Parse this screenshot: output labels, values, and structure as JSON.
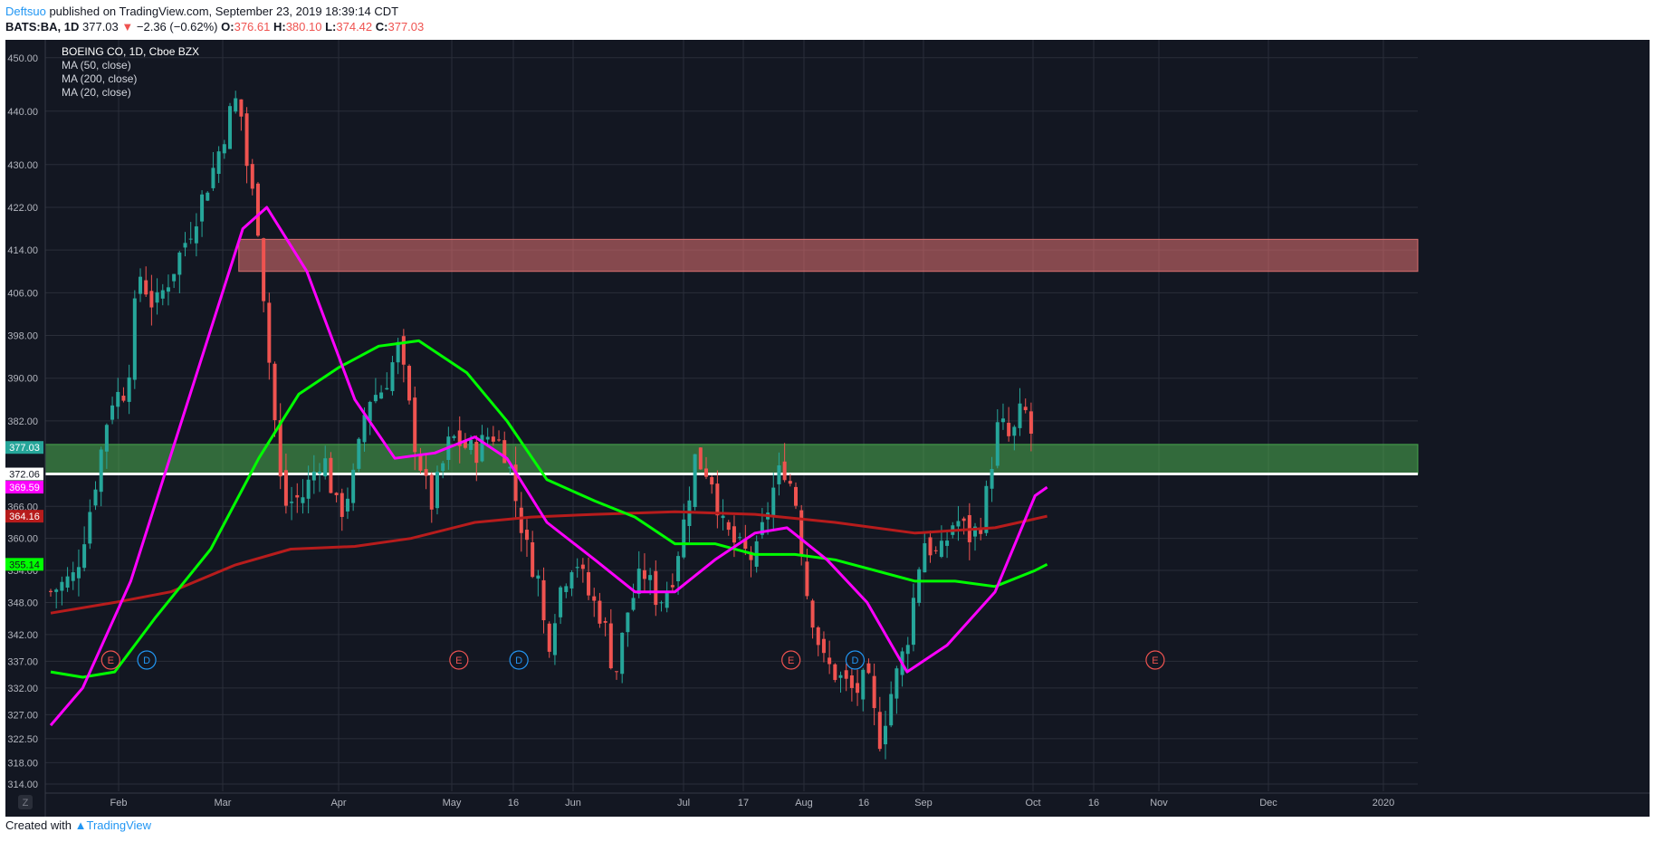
{
  "header": {
    "author": "Deftsuo",
    "published": "published on TradingView.com, September 23, 2019 18:39:14 CDT",
    "symbol": "BATS:BA, 1D",
    "last": "377.03",
    "change_arrow": "▼",
    "change": "−2.36 (−0.62%)",
    "o_label": "O:",
    "o": "376.61",
    "h_label": "H:",
    "h": "380.10",
    "l_label": "L:",
    "l": "374.42",
    "c_label": "C:",
    "c": "377.03"
  },
  "footer": {
    "created_with": "Created with",
    "brand": "TradingView"
  },
  "colors": {
    "background": "#131722",
    "up": "#26a69a",
    "down": "#ef5350",
    "ma50": "#00ff00",
    "ma200": "#b71c1c",
    "ma20": "#ff00ff",
    "resistance_zone": "#e57373",
    "support_zone": "#4caf50"
  },
  "chart_data": {
    "type": "candlestick",
    "title": "BOEING CO, 1D, Cboe BZX",
    "legend": [
      "MA (50, close)",
      "MA (200, close)",
      "MA (20, close)"
    ],
    "legend_placement": "top-left",
    "grid": true,
    "ylim": [
      314,
      452
    ],
    "y_ticks": [
      {
        "v": 450,
        "label": "450.00"
      },
      {
        "v": 440,
        "label": "440.00"
      },
      {
        "v": 430,
        "label": "430.00"
      },
      {
        "v": 422,
        "label": "422.00"
      },
      {
        "v": 414,
        "label": "414.00"
      },
      {
        "v": 406,
        "label": "406.00"
      },
      {
        "v": 398,
        "label": "398.00"
      },
      {
        "v": 390,
        "label": "390.00"
      },
      {
        "v": 382,
        "label": "382.00"
      },
      {
        "v": 366,
        "label": "366.00"
      },
      {
        "v": 360,
        "label": "360.00"
      },
      {
        "v": 354,
        "label": "354.00"
      },
      {
        "v": 348,
        "label": "348.00"
      },
      {
        "v": 342,
        "label": "342.00"
      },
      {
        "v": 337,
        "label": "337.00"
      },
      {
        "v": 332,
        "label": "332.00"
      },
      {
        "v": 327,
        "label": "327.00"
      },
      {
        "v": 322.5,
        "label": "322.50"
      },
      {
        "v": 318,
        "label": "318.00"
      },
      {
        "v": 314,
        "label": "314.00"
      }
    ],
    "x_ticks": [
      "Feb",
      "Mar",
      "Apr",
      "May",
      "16",
      "Jun",
      "Jul",
      "17",
      "Aug",
      "16",
      "Sep",
      "Oct",
      "16",
      "Nov",
      "Dec",
      "2020"
    ],
    "price_labels": [
      {
        "v": 377.03,
        "label": "377.03",
        "color": "#26a69a"
      },
      {
        "v": 372.06,
        "label": "372.06",
        "color": "#ffffff"
      },
      {
        "v": 369.59,
        "label": "369.59",
        "color": "#ff00ff"
      },
      {
        "v": 364.16,
        "label": "364.16",
        "color": "#b71c1c"
      },
      {
        "v": 355.14,
        "label": "355.14",
        "color": "#00ff00"
      }
    ],
    "zones": [
      {
        "name": "resistance",
        "low": 410,
        "high": 416,
        "start_day": 47
      },
      {
        "name": "support",
        "low": 372,
        "high": 377.6,
        "start_day": 0
      }
    ],
    "support_line": 372.06,
    "events": [
      {
        "day": 15,
        "label": "E"
      },
      {
        "day": 24,
        "label": "D"
      },
      {
        "day": 102,
        "label": "E"
      },
      {
        "day": 117,
        "label": "D"
      },
      {
        "day": 185,
        "label": "E"
      },
      {
        "day": 201,
        "label": "D"
      },
      {
        "day": 276,
        "label": "E"
      }
    ],
    "anchors": [
      {
        "day": 0,
        "price": 350
      },
      {
        "day": 6,
        "price": 353
      },
      {
        "day": 10,
        "price": 366
      },
      {
        "day": 15,
        "price": 386
      },
      {
        "day": 19,
        "price": 388
      },
      {
        "day": 22,
        "price": 410
      },
      {
        "day": 26,
        "price": 403
      },
      {
        "day": 31,
        "price": 411
      },
      {
        "day": 35,
        "price": 418
      },
      {
        "day": 41,
        "price": 430
      },
      {
        "day": 45,
        "price": 440
      },
      {
        "day": 47,
        "price": 443
      },
      {
        "day": 49,
        "price": 430
      },
      {
        "day": 52,
        "price": 418
      },
      {
        "day": 54,
        "price": 398
      },
      {
        "day": 58,
        "price": 366
      },
      {
        "day": 63,
        "price": 368
      },
      {
        "day": 68,
        "price": 376
      },
      {
        "day": 72,
        "price": 364
      },
      {
        "day": 76,
        "price": 372
      },
      {
        "day": 79,
        "price": 386
      },
      {
        "day": 83,
        "price": 388
      },
      {
        "day": 87,
        "price": 396
      },
      {
        "day": 91,
        "price": 378
      },
      {
        "day": 95,
        "price": 366
      },
      {
        "day": 100,
        "price": 379
      },
      {
        "day": 106,
        "price": 376
      },
      {
        "day": 110,
        "price": 380
      },
      {
        "day": 114,
        "price": 376
      },
      {
        "day": 116,
        "price": 368
      },
      {
        "day": 119,
        "price": 358
      },
      {
        "day": 122,
        "price": 352
      },
      {
        "day": 124,
        "price": 339
      },
      {
        "day": 127,
        "price": 350
      },
      {
        "day": 131,
        "price": 357
      },
      {
        "day": 134,
        "price": 350
      },
      {
        "day": 138,
        "price": 345
      },
      {
        "day": 141,
        "price": 334
      },
      {
        "day": 144,
        "price": 346
      },
      {
        "day": 148,
        "price": 354
      },
      {
        "day": 152,
        "price": 348
      },
      {
        "day": 155,
        "price": 352
      },
      {
        "day": 158,
        "price": 362
      },
      {
        "day": 161,
        "price": 375
      },
      {
        "day": 165,
        "price": 372
      },
      {
        "day": 168,
        "price": 362
      },
      {
        "day": 172,
        "price": 358
      },
      {
        "day": 176,
        "price": 356
      },
      {
        "day": 180,
        "price": 368
      },
      {
        "day": 183,
        "price": 374
      },
      {
        "day": 186,
        "price": 368
      },
      {
        "day": 189,
        "price": 350
      },
      {
        "day": 193,
        "price": 337
      },
      {
        "day": 197,
        "price": 334
      },
      {
        "day": 201,
        "price": 331
      },
      {
        "day": 204,
        "price": 334
      },
      {
        "day": 207,
        "price": 322
      },
      {
        "day": 210,
        "price": 331
      },
      {
        "day": 214,
        "price": 341
      },
      {
        "day": 218,
        "price": 360
      },
      {
        "day": 222,
        "price": 356
      },
      {
        "day": 226,
        "price": 364
      },
      {
        "day": 230,
        "price": 360
      },
      {
        "day": 233,
        "price": 364
      },
      {
        "day": 235,
        "price": 374
      },
      {
        "day": 237,
        "price": 382
      },
      {
        "day": 240,
        "price": 378
      },
      {
        "day": 243,
        "price": 385
      },
      {
        "day": 246,
        "price": 377
      }
    ],
    "ma20": [
      {
        "day": 0,
        "price": 325
      },
      {
        "day": 8,
        "price": 332
      },
      {
        "day": 20,
        "price": 352
      },
      {
        "day": 34,
        "price": 385
      },
      {
        "day": 48,
        "price": 418
      },
      {
        "day": 54,
        "price": 422
      },
      {
        "day": 64,
        "price": 410
      },
      {
        "day": 76,
        "price": 386
      },
      {
        "day": 86,
        "price": 375
      },
      {
        "day": 96,
        "price": 376
      },
      {
        "day": 106,
        "price": 379
      },
      {
        "day": 114,
        "price": 375
      },
      {
        "day": 124,
        "price": 363
      },
      {
        "day": 136,
        "price": 356
      },
      {
        "day": 146,
        "price": 350
      },
      {
        "day": 156,
        "price": 350
      },
      {
        "day": 166,
        "price": 356
      },
      {
        "day": 176,
        "price": 361
      },
      {
        "day": 184,
        "price": 362
      },
      {
        "day": 194,
        "price": 356
      },
      {
        "day": 204,
        "price": 348
      },
      {
        "day": 214,
        "price": 335
      },
      {
        "day": 224,
        "price": 340
      },
      {
        "day": 236,
        "price": 350
      },
      {
        "day": 246,
        "price": 368
      },
      {
        "day": 249,
        "price": 369.59
      }
    ],
    "ma50": [
      {
        "day": 0,
        "price": 335
      },
      {
        "day": 8,
        "price": 334
      },
      {
        "day": 16,
        "price": 335
      },
      {
        "day": 26,
        "price": 345
      },
      {
        "day": 40,
        "price": 358
      },
      {
        "day": 52,
        "price": 375
      },
      {
        "day": 62,
        "price": 387
      },
      {
        "day": 72,
        "price": 392
      },
      {
        "day": 82,
        "price": 396
      },
      {
        "day": 92,
        "price": 397
      },
      {
        "day": 104,
        "price": 391
      },
      {
        "day": 114,
        "price": 382
      },
      {
        "day": 124,
        "price": 371
      },
      {
        "day": 136,
        "price": 367
      },
      {
        "day": 146,
        "price": 364
      },
      {
        "day": 156,
        "price": 359
      },
      {
        "day": 166,
        "price": 359
      },
      {
        "day": 176,
        "price": 357
      },
      {
        "day": 186,
        "price": 357
      },
      {
        "day": 196,
        "price": 356
      },
      {
        "day": 206,
        "price": 354
      },
      {
        "day": 216,
        "price": 352
      },
      {
        "day": 226,
        "price": 352
      },
      {
        "day": 236,
        "price": 351
      },
      {
        "day": 246,
        "price": 354
      },
      {
        "day": 249,
        "price": 355.14
      }
    ],
    "ma200": [
      {
        "day": 0,
        "price": 346
      },
      {
        "day": 16,
        "price": 348
      },
      {
        "day": 30,
        "price": 350
      },
      {
        "day": 46,
        "price": 355
      },
      {
        "day": 60,
        "price": 358
      },
      {
        "day": 76,
        "price": 358.5
      },
      {
        "day": 90,
        "price": 360
      },
      {
        "day": 106,
        "price": 363
      },
      {
        "day": 120,
        "price": 364
      },
      {
        "day": 136,
        "price": 364.5
      },
      {
        "day": 156,
        "price": 365
      },
      {
        "day": 176,
        "price": 364.5
      },
      {
        "day": 196,
        "price": 363
      },
      {
        "day": 216,
        "price": 361
      },
      {
        "day": 236,
        "price": 362
      },
      {
        "day": 249,
        "price": 364.16
      }
    ]
  }
}
